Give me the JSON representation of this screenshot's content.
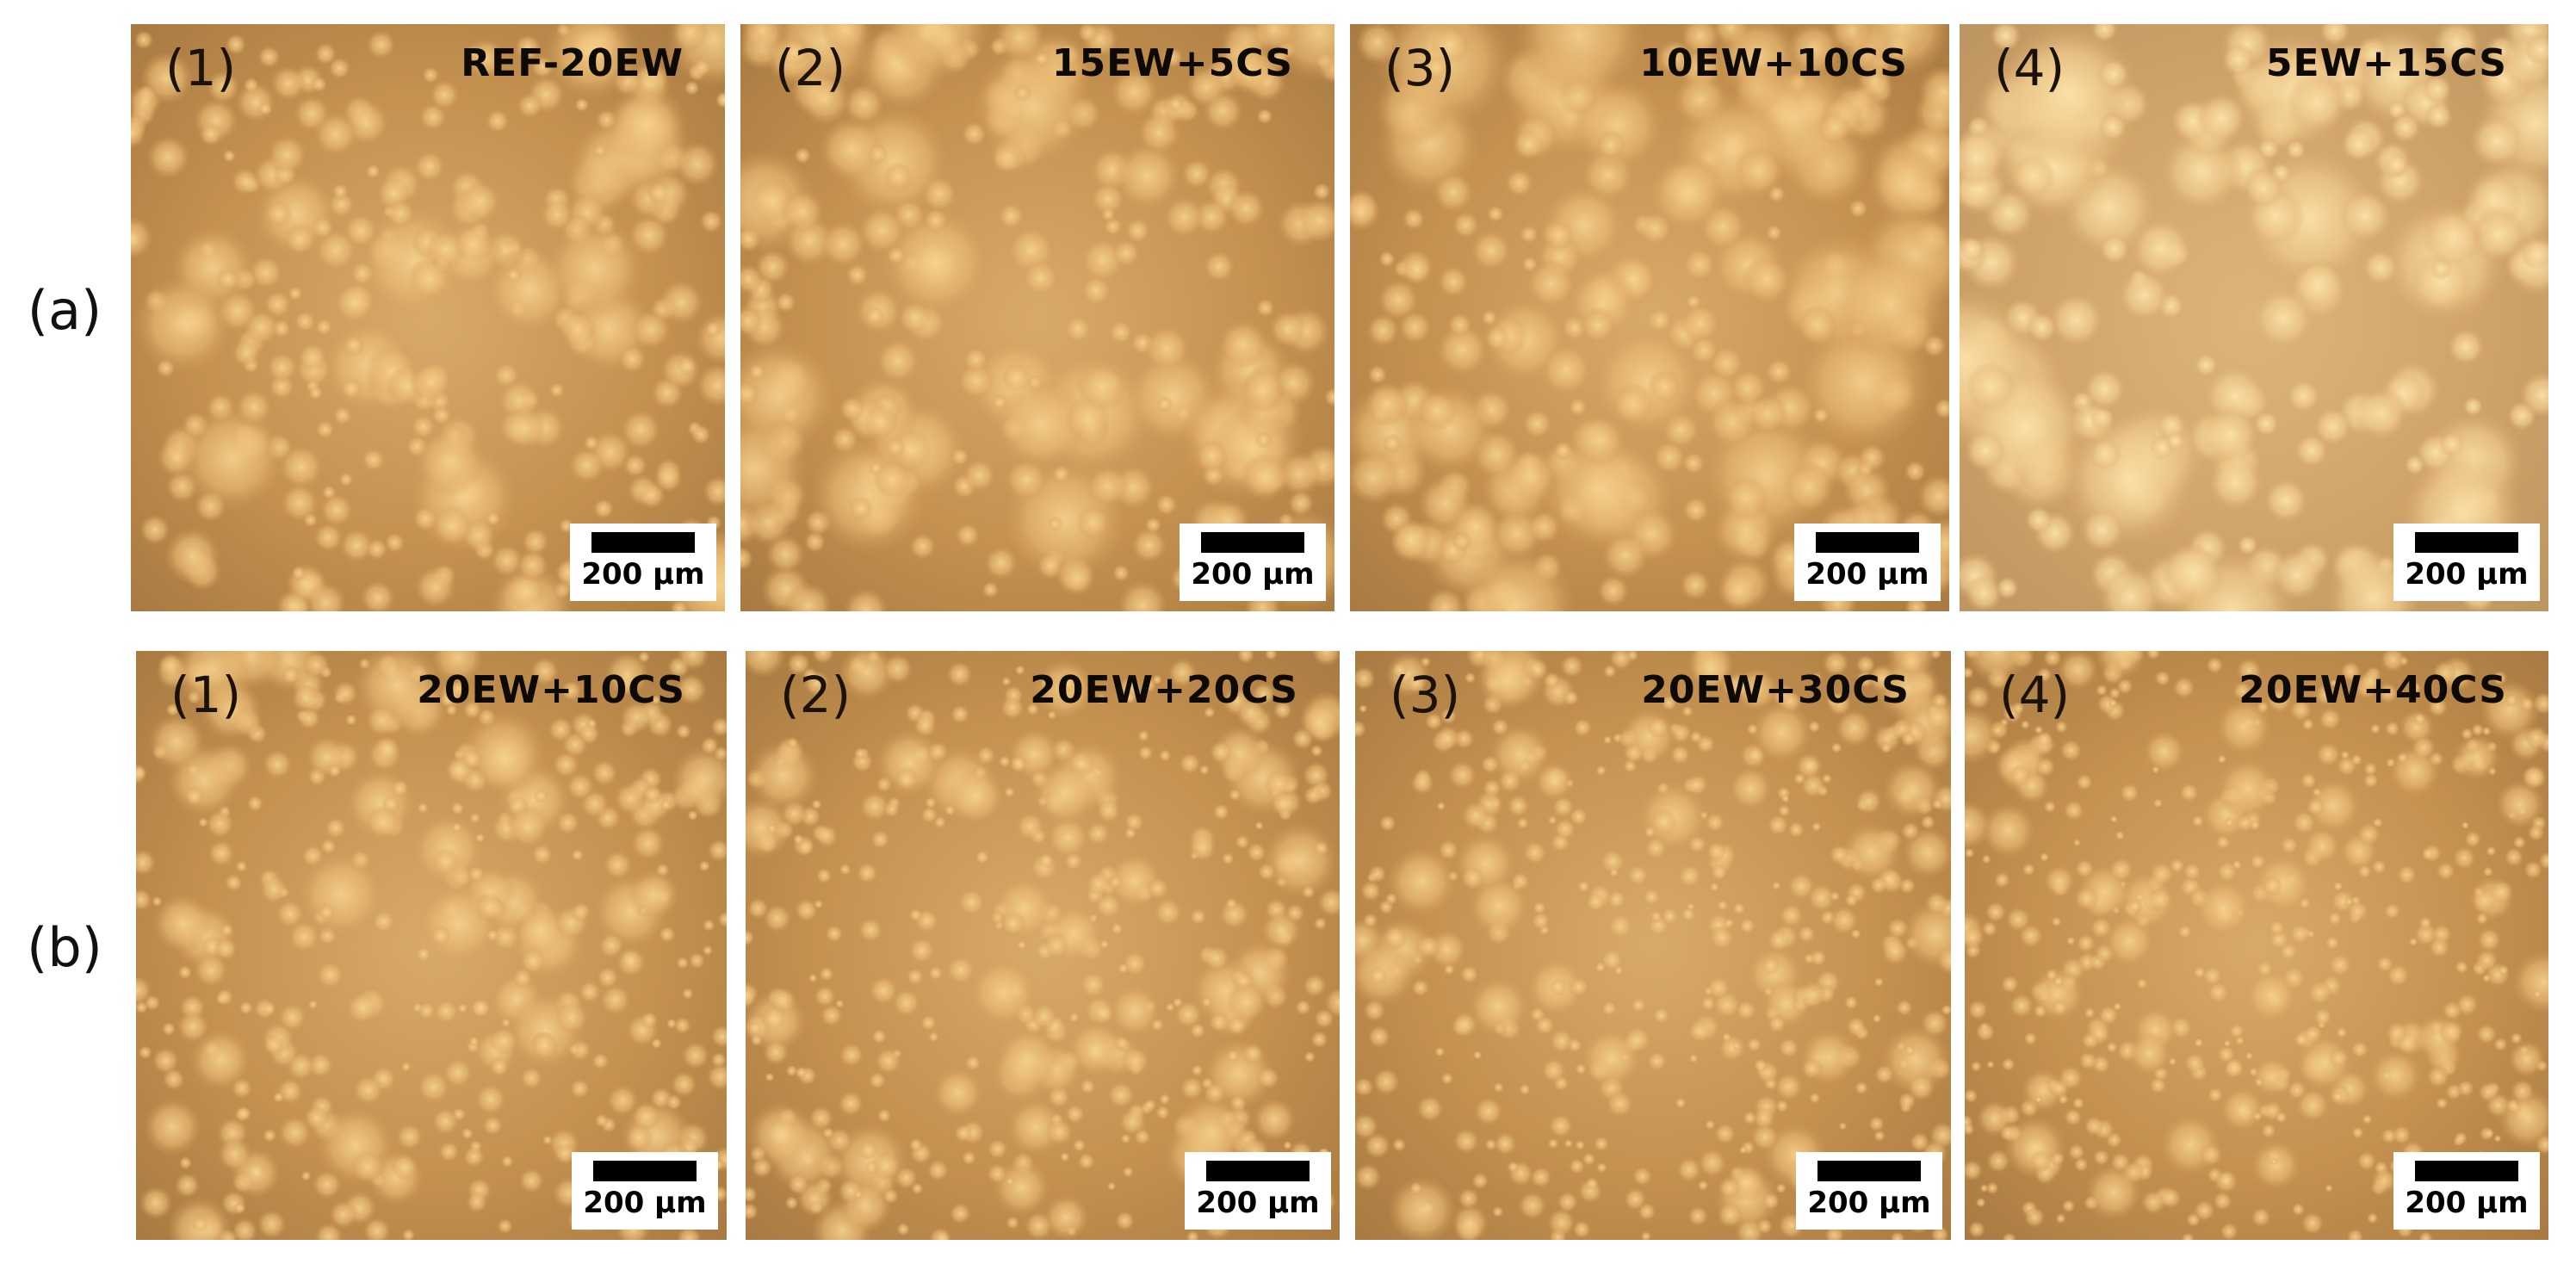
{
  "figure": {
    "rows": [
      {
        "label": "(a)",
        "panels": [
          {
            "index": "(1)",
            "title": "REF-20EW",
            "scale": "200 µm"
          },
          {
            "index": "(2)",
            "title": "15EW+5CS",
            "scale": "200 µm"
          },
          {
            "index": "(3)",
            "title": "10EW+10CS",
            "scale": "200 µm"
          },
          {
            "index": "(4)",
            "title": "5EW+15CS",
            "scale": "200 µm"
          }
        ]
      },
      {
        "label": "(b)",
        "panels": [
          {
            "index": "(1)",
            "title": "20EW+10CS",
            "scale": "200 µm"
          },
          {
            "index": "(2)",
            "title": "20EW+20CS",
            "scale": "200 µm"
          },
          {
            "index": "(3)",
            "title": "20EW+30CS",
            "scale": "200 µm"
          },
          {
            "index": "(4)",
            "title": "20EW+40CS",
            "scale": "200 µm"
          }
        ]
      }
    ]
  },
  "colors": {
    "panel_base": "#c4914f",
    "droplet_light": "#f6d48e",
    "droplet_mid": "#e8b872"
  }
}
